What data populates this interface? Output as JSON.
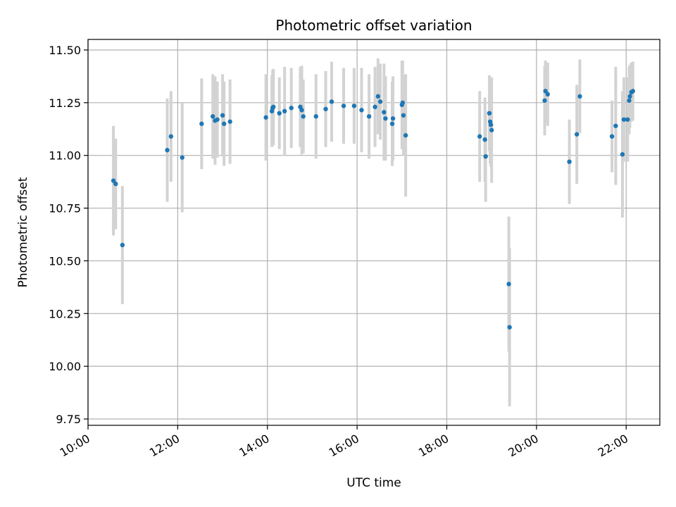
{
  "chart_data": {
    "type": "scatter",
    "title": "Photometric offset variation",
    "xlabel": "UTC time",
    "ylabel": "Photometric offset",
    "xlim": [
      "10:00",
      "22:45"
    ],
    "ylim": [
      9.72,
      11.55
    ],
    "x_ticks": [
      "10:00",
      "12:00",
      "14:00",
      "16:00",
      "18:00",
      "20:00",
      "22:00"
    ],
    "y_ticks": [
      "9.75",
      "10.00",
      "10.25",
      "10.50",
      "10.75",
      "11.00",
      "11.25",
      "11.50"
    ],
    "grid": true,
    "legend": "none",
    "colors": {
      "point": "#1f77b4",
      "errorbar": "#d3d3d3",
      "grid": "#b0b0b0"
    },
    "series": [
      {
        "x": [
          "10:34",
          "10:37",
          "10:46",
          "11:46",
          "11:51",
          "12:06",
          "12:32",
          "12:47",
          "12:50",
          "12:53",
          "13:00",
          "13:02",
          "13:10",
          "13:58",
          "14:06",
          "14:07",
          "14:08",
          "14:16",
          "14:23",
          "14:32",
          "14:44",
          "14:46",
          "14:48",
          "15:05",
          "15:18",
          "15:26",
          "15:42",
          "15:56",
          "16:06",
          "16:16",
          "16:24",
          "16:28",
          "16:31",
          "16:36",
          "16:38",
          "16:47",
          "16:48",
          "17:00",
          "17:01",
          "17:02",
          "17:05",
          "18:44",
          "18:51",
          "18:52",
          "18:57",
          "18:58",
          "18:59",
          "19:00",
          "19:23",
          "19:24",
          "20:11",
          "20:12",
          "20:15",
          "20:44",
          "20:54",
          "20:58",
          "21:41",
          "21:46",
          "21:55",
          "21:57",
          "22:02",
          "22:04",
          "22:05",
          "22:07",
          "22:09"
        ],
        "y": [
          10.88,
          10.865,
          10.575,
          11.025,
          11.09,
          10.99,
          11.15,
          11.185,
          11.165,
          11.17,
          11.19,
          11.15,
          11.16,
          11.18,
          11.21,
          11.225,
          11.23,
          11.2,
          11.21,
          11.225,
          11.23,
          11.215,
          11.185,
          11.185,
          11.22,
          11.255,
          11.235,
          11.235,
          11.215,
          11.185,
          11.23,
          11.28,
          11.255,
          11.205,
          11.175,
          11.15,
          11.175,
          11.24,
          11.25,
          11.19,
          11.095,
          11.09,
          11.075,
          10.995,
          11.2,
          11.16,
          11.145,
          11.12,
          10.39,
          10.185,
          11.26,
          11.305,
          11.29,
          10.97,
          11.1,
          11.28,
          11.09,
          11.14,
          11.005,
          11.17,
          11.17,
          11.26,
          11.28,
          11.3,
          11.305
        ],
        "yerr": [
          0.26,
          0.215,
          0.28,
          0.245,
          0.215,
          0.26,
          0.215,
          0.2,
          0.21,
          0.18,
          0.195,
          0.2,
          0.2,
          0.205,
          0.17,
          0.18,
          0.18,
          0.17,
          0.21,
          0.19,
          0.19,
          0.21,
          0.175,
          0.2,
          0.18,
          0.19,
          0.18,
          0.18,
          0.2,
          0.2,
          0.19,
          0.18,
          0.18,
          0.23,
          0.2,
          0.2,
          0.2,
          0.21,
          0.2,
          0.19,
          0.29,
          0.215,
          0.2,
          0.215,
          0.18,
          0.2,
          0.2,
          0.25,
          0.32,
          0.375,
          0.165,
          0.145,
          0.15,
          0.2,
          0.235,
          0.175,
          0.17,
          0.28,
          0.3,
          0.2,
          0.2,
          0.16,
          0.15,
          0.14,
          0.14
        ]
      }
    ]
  }
}
